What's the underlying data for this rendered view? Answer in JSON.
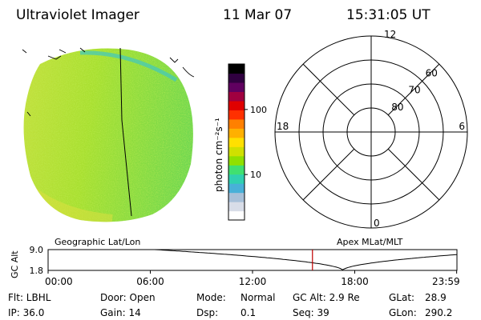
{
  "header": {
    "instrument": "Ultraviolet Imager",
    "date": "11 Mar 07",
    "time": "15:31:05 UT"
  },
  "colorbar": {
    "label": "photon cm⁻²s⁻¹",
    "ticks": [
      {
        "label": "100",
        "value": 100
      },
      {
        "label": "10",
        "value": 10
      }
    ],
    "range": [
      2,
      500
    ],
    "scale": "log",
    "colors": [
      "#ffffff",
      "#d8dde8",
      "#a8c0d8",
      "#48b0d8",
      "#30d0b0",
      "#40e070",
      "#90e000",
      "#d0e000",
      "#ffe000",
      "#ffb000",
      "#ff8000",
      "#ff3000",
      "#e00000",
      "#a00040",
      "#600060",
      "#300040",
      "#000000"
    ]
  },
  "polar_plot": {
    "mlt_labels": [
      {
        "label": "12",
        "hour": 12
      },
      {
        "label": "18",
        "hour": 18
      },
      {
        "label": "6",
        "hour": 6
      },
      {
        "label": "0",
        "hour": 0
      }
    ],
    "lat_rings": [
      {
        "label": "60",
        "lat": 60
      },
      {
        "label": "70",
        "lat": 70
      },
      {
        "label": "80",
        "lat": 80
      }
    ],
    "lat_min": 50
  },
  "timeline": {
    "left_title": "Geographic Lat/Lon",
    "right_title": "Apex MLat/MLT",
    "y_axis_label": "GC Alt",
    "y_ticks": [
      {
        "label": "9.0",
        "value": 9.0
      },
      {
        "label": "1.8",
        "value": 1.8
      }
    ],
    "x_ticks": [
      {
        "label": "00:00",
        "hour": 0
      },
      {
        "label": "06:00",
        "hour": 6
      },
      {
        "label": "12:00",
        "hour": 12
      },
      {
        "label": "18:00",
        "hour": 18
      },
      {
        "label": "23:59",
        "hour": 23.983
      }
    ],
    "current_hour": 15.518,
    "marker_color": "#c00000"
  },
  "info": {
    "filter": "Flt: LBHL",
    "ip": "IP: 36.0",
    "door": "Door: Open",
    "gain": "Gain: 14",
    "mode_label": "Mode:",
    "mode_value": "Normal",
    "dsp_label": "Dsp:",
    "dsp_value": "0.1",
    "gc_alt": "GC Alt: 2.9 Re",
    "seq": "Seq: 39",
    "glat_label": "GLat:",
    "glat_value": "28.9",
    "glon_label": "GLon:",
    "glon_value": "290.2"
  }
}
